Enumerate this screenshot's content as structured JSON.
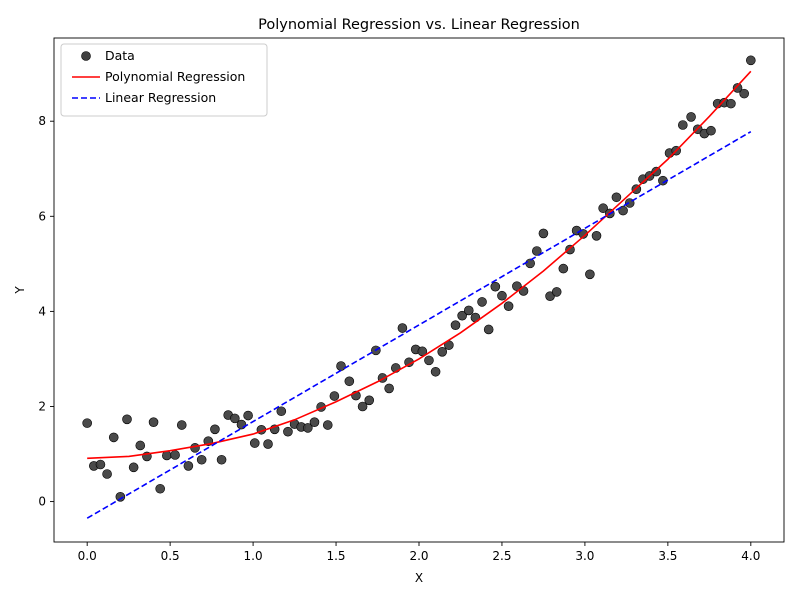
{
  "chart_data": {
    "type": "scatter",
    "title": "Polynomial Regression vs. Linear Regression",
    "xlabel": "X",
    "ylabel": "Y",
    "xlim": [
      -0.2,
      4.2
    ],
    "ylim": [
      -0.85,
      9.75
    ],
    "xticks": [
      "0.0",
      "0.5",
      "1.0",
      "1.5",
      "2.0",
      "2.5",
      "3.0",
      "3.5",
      "4.0"
    ],
    "yticks": [
      "0",
      "2",
      "4",
      "6",
      "8"
    ],
    "grid": false,
    "legend_position": "upper left",
    "legend": [
      "Data",
      "Polynomial Regression",
      "Linear Regression"
    ],
    "colors": {
      "data": "#404040",
      "polynomial": "#ff0000",
      "linear": "#0000ff"
    },
    "series": [
      {
        "name": "Data",
        "kind": "scatter",
        "points": [
          [
            0.0,
            1.65
          ],
          [
            0.04,
            0.75
          ],
          [
            0.08,
            0.78
          ],
          [
            0.12,
            0.58
          ],
          [
            0.16,
            1.35
          ],
          [
            0.2,
            0.1
          ],
          [
            0.24,
            1.73
          ],
          [
            0.28,
            0.72
          ],
          [
            0.32,
            1.18
          ],
          [
            0.36,
            0.95
          ],
          [
            0.4,
            1.67
          ],
          [
            0.44,
            0.27
          ],
          [
            0.48,
            0.97
          ],
          [
            0.53,
            0.98
          ],
          [
            0.57,
            1.61
          ],
          [
            0.61,
            0.75
          ],
          [
            0.65,
            1.13
          ],
          [
            0.69,
            0.88
          ],
          [
            0.73,
            1.27
          ],
          [
            0.77,
            1.52
          ],
          [
            0.81,
            0.88
          ],
          [
            0.85,
            1.82
          ],
          [
            0.89,
            1.75
          ],
          [
            0.93,
            1.62
          ],
          [
            0.97,
            1.81
          ],
          [
            1.01,
            1.23
          ],
          [
            1.05,
            1.51
          ],
          [
            1.09,
            1.21
          ],
          [
            1.13,
            1.52
          ],
          [
            1.17,
            1.9
          ],
          [
            1.21,
            1.47
          ],
          [
            1.25,
            1.63
          ],
          [
            1.29,
            1.57
          ],
          [
            1.33,
            1.55
          ],
          [
            1.37,
            1.67
          ],
          [
            1.41,
            1.99
          ],
          [
            1.45,
            1.61
          ],
          [
            1.49,
            2.22
          ],
          [
            1.53,
            2.85
          ],
          [
            1.58,
            2.53
          ],
          [
            1.62,
            2.23
          ],
          [
            1.66,
            2.0
          ],
          [
            1.7,
            2.13
          ],
          [
            1.74,
            3.18
          ],
          [
            1.78,
            2.6
          ],
          [
            1.82,
            2.38
          ],
          [
            1.86,
            2.81
          ],
          [
            1.9,
            3.65
          ],
          [
            1.94,
            2.93
          ],
          [
            1.98,
            3.2
          ],
          [
            2.02,
            3.16
          ],
          [
            2.06,
            2.97
          ],
          [
            2.1,
            2.73
          ],
          [
            2.14,
            3.15
          ],
          [
            2.18,
            3.29
          ],
          [
            2.22,
            3.71
          ],
          [
            2.26,
            3.91
          ],
          [
            2.3,
            4.02
          ],
          [
            2.34,
            3.87
          ],
          [
            2.38,
            4.2
          ],
          [
            2.42,
            3.62
          ],
          [
            2.46,
            4.52
          ],
          [
            2.5,
            4.33
          ],
          [
            2.54,
            4.11
          ],
          [
            2.59,
            4.53
          ],
          [
            2.63,
            4.43
          ],
          [
            2.67,
            5.01
          ],
          [
            2.71,
            5.27
          ],
          [
            2.75,
            5.64
          ],
          [
            2.79,
            4.32
          ],
          [
            2.83,
            4.41
          ],
          [
            2.87,
            4.9
          ],
          [
            2.91,
            5.3
          ],
          [
            2.95,
            5.7
          ],
          [
            2.99,
            5.63
          ],
          [
            3.03,
            4.78
          ],
          [
            3.07,
            5.59
          ],
          [
            3.11,
            6.17
          ],
          [
            3.15,
            6.06
          ],
          [
            3.19,
            6.4
          ],
          [
            3.23,
            6.12
          ],
          [
            3.27,
            6.28
          ],
          [
            3.31,
            6.57
          ],
          [
            3.35,
            6.78
          ],
          [
            3.39,
            6.85
          ],
          [
            3.43,
            6.94
          ],
          [
            3.47,
            6.75
          ],
          [
            3.51,
            7.33
          ],
          [
            3.55,
            7.38
          ],
          [
            3.59,
            7.92
          ],
          [
            3.64,
            8.09
          ],
          [
            3.68,
            7.83
          ],
          [
            3.72,
            7.74
          ],
          [
            3.76,
            7.8
          ],
          [
            3.8,
            8.37
          ],
          [
            3.84,
            8.39
          ],
          [
            3.88,
            8.37
          ],
          [
            3.92,
            8.7
          ],
          [
            3.96,
            8.58
          ],
          [
            4.0,
            9.28
          ]
        ]
      },
      {
        "name": "Polynomial Regression",
        "kind": "line",
        "style": "solid",
        "points": [
          [
            0.0,
            0.91
          ],
          [
            0.25,
            0.95
          ],
          [
            0.5,
            1.07
          ],
          [
            0.75,
            1.22
          ],
          [
            1.0,
            1.42
          ],
          [
            1.25,
            1.72
          ],
          [
            1.5,
            2.1
          ],
          [
            1.75,
            2.52
          ],
          [
            2.0,
            3.0
          ],
          [
            2.25,
            3.55
          ],
          [
            2.5,
            4.17
          ],
          [
            2.75,
            4.85
          ],
          [
            3.0,
            5.6
          ],
          [
            3.25,
            6.4
          ],
          [
            3.5,
            7.2
          ],
          [
            3.75,
            8.1
          ],
          [
            4.0,
            9.05
          ]
        ]
      },
      {
        "name": "Linear Regression",
        "kind": "line",
        "style": "dashed",
        "points": [
          [
            0.0,
            -0.35
          ],
          [
            4.0,
            7.78
          ]
        ]
      }
    ]
  }
}
